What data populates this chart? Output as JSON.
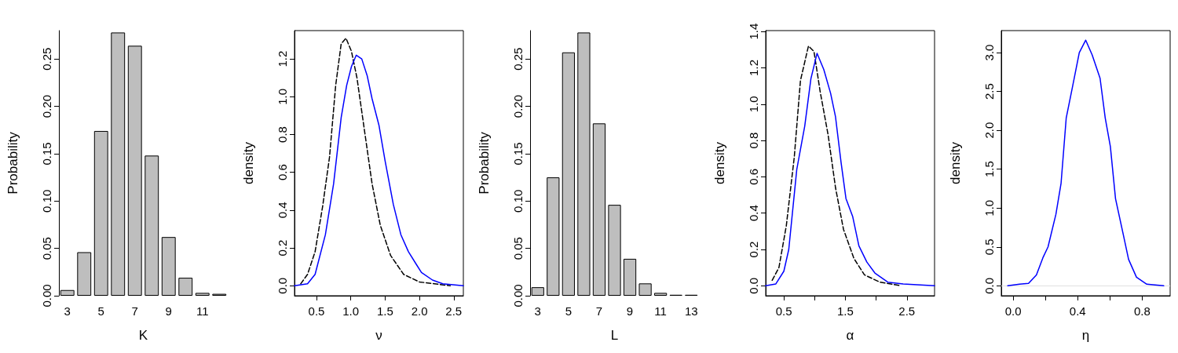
{
  "chart_data": [
    {
      "type": "bar",
      "xlabel": "K",
      "ylabel": "Probability",
      "categories": [
        "3",
        null,
        "5",
        null,
        "7",
        null,
        "9",
        null,
        "11",
        null
      ],
      "values": [
        0.006,
        0.046,
        0.174,
        0.278,
        0.264,
        0.148,
        0.062,
        0.019,
        0.003,
        0.002
      ],
      "color": "#bebebe",
      "ylim": [
        0,
        0.28
      ],
      "yticks": [
        {
          "value": 0,
          "label": "0.00"
        },
        {
          "value": 0.05,
          "label": "0.05"
        },
        {
          "value": 0.1,
          "label": "0.10"
        },
        {
          "value": 0.15,
          "label": "0.15"
        },
        {
          "value": 0.2,
          "label": "0.20"
        },
        0.25
      ]
    },
    {
      "type": "line",
      "xlabel": "ν",
      "ylabel": "density",
      "marker": "none",
      "xlim": [
        0.18,
        2.64
      ],
      "ylim": [
        -0.053,
        1.35
      ],
      "xticks": [
        0.5,
        {
          "value": 1,
          "label": "1.0"
        },
        1.5,
        {
          "value": 2,
          "label": "2.0"
        },
        2.5
      ],
      "yticks": [
        {
          "value": 0,
          "label": "0.0"
        },
        0.2,
        0.4,
        0.6,
        0.8,
        {
          "value": 1,
          "label": "1.0"
        },
        1.2
      ],
      "series": [
        {
          "color": "#000000",
          "line_style": "dashed",
          "x": [
            0.27,
            0.37,
            0.48,
            0.59,
            0.69,
            0.78,
            0.86,
            0.93,
            1.01,
            1.09,
            1.2,
            1.31,
            1.43,
            1.58,
            1.77,
            2.0,
            2.22,
            2.45
          ],
          "values": [
            0.01,
            0.06,
            0.18,
            0.42,
            0.68,
            1.06,
            1.28,
            1.31,
            1.24,
            1.1,
            0.82,
            0.54,
            0.32,
            0.16,
            0.06,
            0.02,
            0.01,
            0
          ]
        },
        {
          "color": "#0000ff",
          "line_style": "solid",
          "x": [
            0.18,
            0.37,
            0.48,
            0.63,
            0.75,
            0.86,
            0.94,
            1.01,
            1.08,
            1.16,
            1.24,
            1.31,
            1.41,
            1.5,
            1.62,
            1.73,
            1.84,
            1.96,
            2.03,
            2.19,
            2.34,
            2.64
          ],
          "values": [
            0,
            0.01,
            0.06,
            0.27,
            0.54,
            0.89,
            1.06,
            1.16,
            1.22,
            1.2,
            1.11,
            0.99,
            0.85,
            0.66,
            0.43,
            0.27,
            0.18,
            0.11,
            0.07,
            0.03,
            0.01,
            0
          ]
        }
      ]
    },
    {
      "type": "bar",
      "xlabel": "L",
      "ylabel": "Probability",
      "categories": [
        "3",
        null,
        "5",
        null,
        "7",
        null,
        "9",
        null,
        "11",
        null,
        "13"
      ],
      "values": [
        0.009,
        0.125,
        0.257,
        0.278,
        0.182,
        0.096,
        0.039,
        0.013,
        0.003,
        0.001,
        0.001
      ],
      "color": "#bebebe",
      "ylim": [
        0,
        0.28
      ],
      "yticks": [
        {
          "value": 0,
          "label": "0.00"
        },
        {
          "value": 0.05,
          "label": "0.05"
        },
        {
          "value": 0.1,
          "label": "0.10"
        },
        {
          "value": 0.15,
          "label": "0.15"
        },
        {
          "value": 0.2,
          "label": "0.20"
        },
        0.25
      ]
    },
    {
      "type": "line",
      "xlabel": "α",
      "ylabel": "density",
      "marker": "none",
      "xlim": [
        0.205,
        2.95
      ],
      "ylim": [
        -0.055,
        1.405
      ],
      "xticks": [
        0.5,
        {
          "value": 1,
          "label": null
        },
        1.5,
        {
          "value": 2,
          "label": null
        },
        2.5
      ],
      "yticks": [
        {
          "value": 0,
          "label": "0.0"
        },
        0.2,
        0.4,
        0.6,
        0.8,
        {
          "value": 1,
          "label": "1.0"
        },
        1.2,
        1.4
      ],
      "series": [
        {
          "color": "#000000",
          "line_style": "dashed",
          "x": [
            0.31,
            0.42,
            0.54,
            0.67,
            0.77,
            0.9,
            0.99,
            1.09,
            1.22,
            1.34,
            1.47,
            1.64,
            1.81,
            2.06,
            2.4
          ],
          "values": [
            0.03,
            0.1,
            0.33,
            0.71,
            1.13,
            1.32,
            1.29,
            1.07,
            0.83,
            0.54,
            0.31,
            0.15,
            0.06,
            0.02,
            0
          ]
        },
        {
          "color": "#0000ff",
          "line_style": "solid",
          "x": [
            0.205,
            0.37,
            0.5,
            0.58,
            0.71,
            0.84,
            0.94,
            1.04,
            1.15,
            1.26,
            1.34,
            1.43,
            1.51,
            1.62,
            1.72,
            1.85,
            1.98,
            2.19,
            2.44,
            2.95
          ],
          "values": [
            0,
            0.01,
            0.08,
            0.2,
            0.64,
            0.88,
            1.14,
            1.28,
            1.19,
            1.06,
            0.93,
            0.68,
            0.48,
            0.38,
            0.22,
            0.13,
            0.07,
            0.02,
            0.01,
            0
          ]
        }
      ]
    },
    {
      "type": "line",
      "xlabel": "η",
      "ylabel": "density",
      "marker": "none",
      "xlim": [
        -0.074,
        0.974
      ],
      "ylim": [
        -0.128,
        3.283
      ],
      "xticks": [
        {
          "value": 0,
          "label": "0.0"
        },
        {
          "value": 0.2,
          "label": null
        },
        0.4,
        {
          "value": 0.6,
          "label": null
        },
        0.8
      ],
      "yticks": [
        {
          "value": 0,
          "label": "0.0"
        },
        0.5,
        {
          "value": 1,
          "label": "1.0"
        },
        1.5,
        {
          "value": 2,
          "label": "2.0"
        },
        2.5,
        {
          "value": 3,
          "label": "3.0"
        }
      ],
      "ref_lines": [
        {
          "axis": "y",
          "value": 0,
          "color": "#e0e0e0"
        }
      ],
      "series": [
        {
          "color": "#0000ff",
          "line_style": "solid",
          "x": [
            -0.034,
            0.039,
            0.095,
            0.144,
            0.184,
            0.216,
            0.265,
            0.297,
            0.329,
            0.369,
            0.41,
            0.45,
            0.49,
            0.539,
            0.571,
            0.603,
            0.635,
            0.684,
            0.716,
            0.765,
            0.829,
            0.934
          ],
          "values": [
            0,
            0.02,
            0.03,
            0.14,
            0.36,
            0.5,
            0.92,
            1.32,
            2.16,
            2.57,
            3.0,
            3.16,
            2.97,
            2.67,
            2.16,
            1.79,
            1.12,
            0.65,
            0.34,
            0.11,
            0.02,
            0
          ]
        }
      ]
    }
  ]
}
